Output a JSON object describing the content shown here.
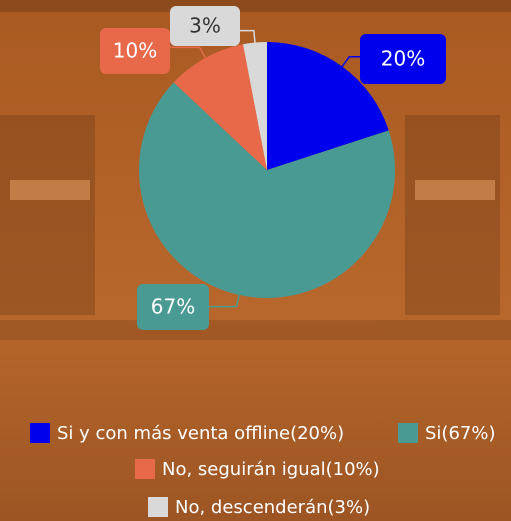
{
  "chart_data": {
    "type": "pie",
    "categories": [
      "Si y con más venta offline(20%)",
      "Si(67%)",
      "No, seguirán igual(10%)",
      "No, descenderán(3%)"
    ],
    "values": [
      20,
      67,
      10,
      3
    ],
    "value_labels": [
      "20%",
      "67%",
      "10%",
      "3%"
    ],
    "colors": [
      "#0000ee",
      "#4a9a94",
      "#e8694a",
      "#d9d9d9"
    ],
    "legend": "bottom"
  }
}
